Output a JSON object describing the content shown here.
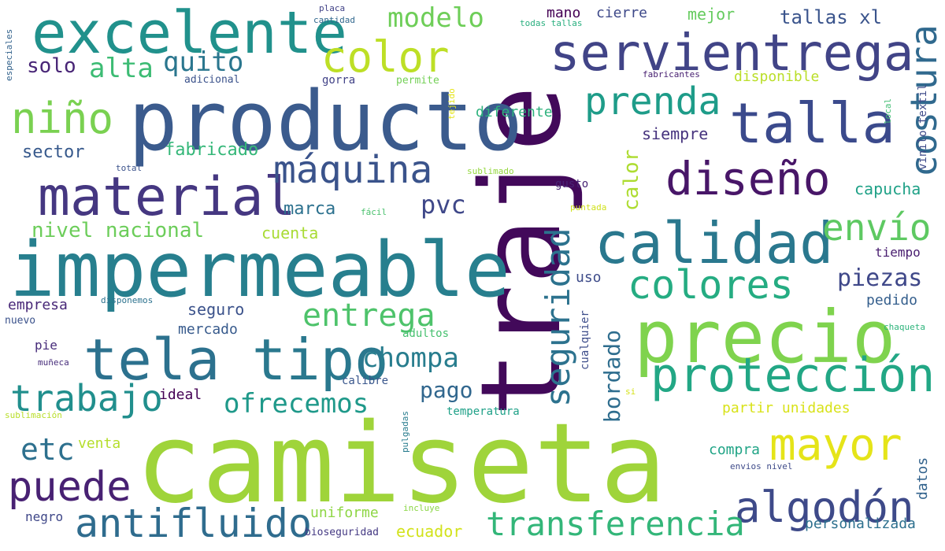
{
  "words": [
    {
      "text": "camiseta",
      "color": "#9fd43a"
    },
    {
      "text": "traje",
      "color": "#42095a"
    },
    {
      "text": "producto",
      "color": "#3b5b8d"
    },
    {
      "text": "impermeable",
      "color": "#277f8e"
    },
    {
      "text": "precio",
      "color": "#7fd34e"
    },
    {
      "text": "excelente",
      "color": "#21918c"
    },
    {
      "text": "servientrega",
      "color": "#414487"
    },
    {
      "text": "talla",
      "color": "#3b4a8c"
    },
    {
      "text": "calidad",
      "color": "#2a788e"
    },
    {
      "text": "material",
      "color": "#453781"
    },
    {
      "text": "tela",
      "color": "#2c718e"
    },
    {
      "text": "tipo",
      "color": "#2a788e"
    },
    {
      "text": "protección",
      "color": "#22a785"
    },
    {
      "text": "mayor",
      "color": "#e5e419"
    },
    {
      "text": "algodón",
      "color": "#3e4a89"
    },
    {
      "text": "diseño",
      "color": "#481668"
    },
    {
      "text": "máquina",
      "color": "#3a538b"
    },
    {
      "text": "niño",
      "color": "#7ad151"
    },
    {
      "text": "color",
      "color": "#bddf26"
    },
    {
      "text": "prenda",
      "color": "#1e9c89"
    },
    {
      "text": "colores",
      "color": "#25ac82"
    },
    {
      "text": "envío",
      "color": "#5ec962"
    },
    {
      "text": "antifluido",
      "color": "#2f6c8e"
    },
    {
      "text": "transferencia",
      "color": "#33b679"
    },
    {
      "text": "puede",
      "color": "#482173"
    },
    {
      "text": "trabajo",
      "color": "#218f8d"
    },
    {
      "text": "entrega",
      "color": "#4ec36b"
    },
    {
      "text": "costura",
      "color": "#30698e"
    },
    {
      "text": "seguridad",
      "color": "#2c728e"
    },
    {
      "text": "chompa",
      "color": "#287d8e"
    },
    {
      "text": "ofrecemos",
      "color": "#1f998a"
    },
    {
      "text": "modelo",
      "color": "#6ece58"
    },
    {
      "text": "quito",
      "color": "#2a768e"
    },
    {
      "text": "alta",
      "color": "#3dbc74"
    },
    {
      "text": "etc",
      "color": "#2d708e"
    },
    {
      "text": "pago",
      "color": "#31678e"
    },
    {
      "text": "piezas",
      "color": "#3f4889"
    },
    {
      "text": "bordado",
      "color": "#2e6d8e"
    },
    {
      "text": "pvc",
      "color": "#3f4889"
    },
    {
      "text": "calor",
      "color": "#addc30"
    },
    {
      "text": "nivel nacional",
      "color": "#6ccd5a"
    },
    {
      "text": "solo",
      "color": "#482576"
    },
    {
      "text": "tallas xl",
      "color": "#3a548c"
    },
    {
      "text": "sector",
      "color": "#37598c"
    },
    {
      "text": "fabricado",
      "color": "#35b779"
    },
    {
      "text": "marca",
      "color": "#2c718e"
    },
    {
      "text": "cuenta",
      "color": "#a8db34"
    },
    {
      "text": "capucha",
      "color": "#1fa187"
    },
    {
      "text": "siempre",
      "color": "#46337e"
    },
    {
      "text": "mejor",
      "color": "#65cb5e"
    },
    {
      "text": "mano",
      "color": "#440154"
    },
    {
      "text": "cierre",
      "color": "#3e4989"
    },
    {
      "text": "disponible",
      "color": "#bade28"
    },
    {
      "text": "diferente",
      "color": "#2db27d"
    },
    {
      "text": "seguro",
      "color": "#3b528b"
    },
    {
      "text": "uso",
      "color": "#3e4c8a"
    },
    {
      "text": "mercado",
      "color": "#375a8c"
    },
    {
      "text": "pedido",
      "color": "#355f8d"
    },
    {
      "text": "tiempo",
      "color": "#481d6f"
    },
    {
      "text": "empresa",
      "color": "#482878"
    },
    {
      "text": "ideal",
      "color": "#440154"
    },
    {
      "text": "venta",
      "color": "#b5de2b"
    },
    {
      "text": "compra",
      "color": "#20a486"
    },
    {
      "text": "uniforme",
      "color": "#8ed645"
    },
    {
      "text": "ecuador",
      "color": "#d2e21b"
    },
    {
      "text": "partir unidades",
      "color": "#d8e219"
    },
    {
      "text": "datos",
      "color": "#33638d"
    },
    {
      "text": "personalizada",
      "color": "#2d708e"
    },
    {
      "text": "negro",
      "color": "#3f4788"
    },
    {
      "text": "pie",
      "color": "#472c7a"
    },
    {
      "text": "gorra",
      "color": "#414287"
    },
    {
      "text": "gusto",
      "color": "#482475"
    },
    {
      "text": "temperatura",
      "color": "#1fa188"
    },
    {
      "text": "calibre",
      "color": "#39568c"
    },
    {
      "text": "adultos",
      "color": "#46c06f"
    },
    {
      "text": "cualquier",
      "color": "#3d4d8a"
    },
    {
      "text": "vinilo textil",
      "color": "#3e4a89"
    },
    {
      "text": "local",
      "color": "#40bd72"
    },
    {
      "text": "todas tallas",
      "color": "#29af7f"
    },
    {
      "text": "placa",
      "color": "#414287"
    },
    {
      "text": "cantidad",
      "color": "#31688e"
    },
    {
      "text": "especiales",
      "color": "#33638d"
    },
    {
      "text": "adicional",
      "color": "#3b528b"
    },
    {
      "text": "permite",
      "color": "#73d056"
    },
    {
      "text": "fabricantes",
      "color": "#482071"
    },
    {
      "text": "tejido",
      "color": "#e5e419"
    },
    {
      "text": "total",
      "color": "#3b528b"
    },
    {
      "text": "sublimado",
      "color": "#95d840"
    },
    {
      "text": "fácil",
      "color": "#4ac16d"
    },
    {
      "text": "puntada",
      "color": "#d0e11c"
    },
    {
      "text": "disponemos",
      "color": "#2c728e"
    },
    {
      "text": "nuevo",
      "color": "#3b528b"
    },
    {
      "text": "muñeca",
      "color": "#472d7b"
    },
    {
      "text": "sublimación",
      "color": "#b8de29"
    },
    {
      "text": "pulgadas",
      "color": "#287c8e"
    },
    {
      "text": "incluye",
      "color": "#8bd646"
    },
    {
      "text": "bioseguridad",
      "color": "#443983"
    },
    {
      "text": "envios nivel",
      "color": "#3e4a89"
    },
    {
      "text": "chaqueta",
      "color": "#2fb47c"
    },
    {
      "text": "si",
      "color": "#d5e21a"
    }
  ]
}
